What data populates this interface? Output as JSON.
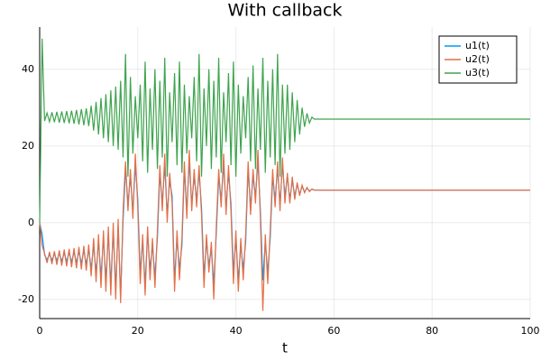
{
  "chart_data": {
    "type": "line",
    "title": "With callback",
    "x_label": "t",
    "x": [
      0,
      0.5,
      1,
      1.5,
      2,
      2.5,
      3,
      3.5,
      4,
      4.5,
      5,
      5.5,
      6,
      6.5,
      7,
      7.5,
      8,
      8.5,
      9,
      9.5,
      10,
      10.5,
      11,
      11.5,
      12,
      12.5,
      13,
      13.5,
      14,
      14.5,
      15,
      15.5,
      16,
      16.5,
      17,
      17.5,
      18,
      18.5,
      19,
      19.5,
      20,
      20.5,
      21,
      21.5,
      22,
      22.5,
      23,
      23.5,
      24,
      24.5,
      25,
      25.5,
      26,
      26.5,
      27,
      27.5,
      28,
      28.5,
      29,
      29.5,
      30,
      30.5,
      31,
      31.5,
      32,
      32.5,
      33,
      33.5,
      34,
      34.5,
      35,
      35.5,
      36,
      36.5,
      37,
      37.5,
      38,
      38.5,
      39,
      39.5,
      40,
      40.5,
      41,
      41.5,
      42,
      42.5,
      43,
      43.5,
      44,
      44.5,
      45,
      45.5,
      46,
      46.5,
      47,
      47.5,
      48,
      48.5,
      49,
      49.5,
      50,
      50.5,
      51,
      51.5,
      52,
      52.5,
      53,
      53.5,
      54,
      54.5,
      55,
      55.5,
      56,
      100
    ],
    "series": [
      {
        "name": "u1(t)",
        "color": "#009afa",
        "values": [
          0,
          -3,
          -8.4,
          -9.7,
          -8.2,
          -9.8,
          -8.1,
          -9.9,
          -8,
          -10,
          -7.9,
          -10.1,
          -7.8,
          -10.2,
          -7.7,
          -10.4,
          -7.5,
          -10.6,
          -7.3,
          -10.8,
          -7.1,
          -12,
          -6,
          -13,
          -5,
          -14,
          -4,
          -15,
          -3,
          -16,
          -2,
          -17,
          -1,
          -19,
          0.5,
          14,
          5,
          12,
          3,
          15,
          6,
          -13,
          -5,
          -16,
          -3,
          -12,
          -6,
          -14,
          -4,
          13,
          5,
          15,
          2,
          11,
          7,
          -15,
          -4,
          -12,
          -6,
          14,
          3,
          16,
          5,
          12,
          6,
          13,
          4,
          -14,
          -5,
          -11,
          -7,
          -16,
          -3,
          12,
          6,
          15,
          4,
          13,
          5,
          -13,
          -4,
          -15,
          -6,
          -12,
          -5,
          14,
          4,
          12,
          7,
          16,
          3,
          -15,
          -5,
          -13,
          -4,
          12,
          6,
          14,
          5,
          15,
          7,
          12,
          6,
          11,
          7,
          10,
          7.5,
          9.5,
          8,
          9,
          8.3,
          8.7,
          8.5,
          8.5
        ]
      },
      {
        "name": "u2(t)",
        "color": "#e36f47",
        "values": [
          0,
          -6,
          -8,
          -10.5,
          -7.6,
          -10.8,
          -7.4,
          -11,
          -7.2,
          -11.2,
          -7,
          -11.4,
          -6.8,
          -11.6,
          -6.6,
          -11.9,
          -6.3,
          -12.2,
          -6,
          -12.5,
          -5.7,
          -14,
          -4,
          -15.5,
          -3,
          -17,
          -2,
          -18,
          -1,
          -19,
          0,
          -20,
          1,
          -21,
          3,
          16,
          3,
          14,
          1,
          18,
          4,
          -16,
          -3,
          -19,
          -1,
          -15,
          -4,
          -17,
          -2,
          15,
          3,
          18,
          0,
          13,
          5,
          -18,
          -2,
          -15,
          -4,
          16,
          1,
          19,
          3,
          14,
          4,
          15,
          2,
          -17,
          -3,
          -13,
          -5,
          -20,
          -1,
          14,
          4,
          18,
          2,
          15,
          3,
          -16,
          -2,
          -18,
          -4,
          -15,
          -3,
          16,
          2,
          14,
          5,
          19,
          1,
          -23,
          -3,
          -16,
          -2,
          14,
          4,
          16,
          3,
          17,
          5,
          13,
          5,
          12,
          6,
          10.5,
          7,
          9.8,
          7.8,
          9.2,
          8.1,
          8.8,
          8.5,
          8.5
        ]
      },
      {
        "name": "u3(t)",
        "color": "#3ea44e",
        "values": [
          0,
          48,
          26.5,
          28.6,
          26.3,
          28.8,
          26.2,
          28.9,
          26.1,
          29,
          26,
          29.1,
          25.9,
          29.2,
          25.8,
          29.4,
          25.6,
          29.6,
          25.4,
          29.8,
          25.2,
          30.5,
          24,
          31.5,
          23,
          32.5,
          22,
          33.5,
          21,
          34.5,
          20,
          35.5,
          19,
          37,
          17,
          44,
          12,
          38,
          18,
          33,
          22,
          36,
          16,
          42,
          13,
          35,
          19,
          40,
          14,
          37,
          17,
          43,
          12,
          34,
          21,
          39,
          15,
          42,
          13,
          36,
          18,
          33,
          22,
          38,
          16,
          44,
          12,
          35,
          20,
          40,
          14,
          37,
          17,
          43,
          13,
          34,
          21,
          39,
          15,
          42,
          12,
          36,
          18,
          33,
          22,
          38,
          16,
          41,
          14,
          35,
          19,
          43,
          13,
          37,
          17,
          40,
          15,
          44,
          12,
          36,
          18,
          36,
          19,
          34,
          21,
          32,
          23,
          30,
          25,
          28.5,
          26,
          27.5,
          27,
          27
        ]
      }
    ],
    "xlim": [
      0,
      100
    ],
    "xticks": [
      0,
      20,
      40,
      60,
      80,
      100
    ],
    "ylim": [
      -25,
      51
    ],
    "yticks": [
      -20,
      0,
      20,
      40
    ],
    "grid": true,
    "legend": "top-right"
  }
}
